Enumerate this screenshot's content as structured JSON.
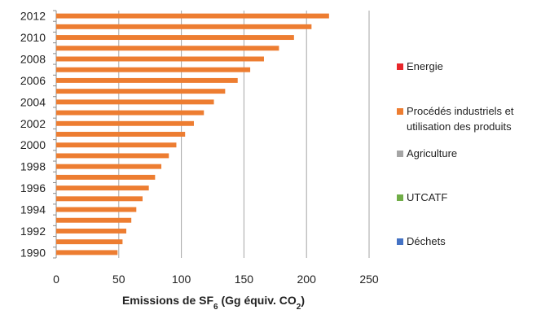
{
  "chart_data": {
    "type": "bar",
    "orientation": "horizontal",
    "stacked": true,
    "title": "",
    "xlabel": "Emissions de SF6 (Gg équiv. CO2)",
    "xlabel_parts": {
      "pre": "Emissions de SF",
      "sub1": "6",
      "mid": " (Gg équiv. CO",
      "sub2": "2",
      "post": ")"
    },
    "ylabel": "",
    "xlim": [
      0,
      250
    ],
    "xticks": [
      "0",
      "50",
      "100",
      "150",
      "200",
      "250"
    ],
    "grid": "vertical",
    "legend_position": "right",
    "categories": [
      "1990",
      "1991",
      "1992",
      "1993",
      "1994",
      "1995",
      "1996",
      "1997",
      "1998",
      "1999",
      "2000",
      "2001",
      "2002",
      "2003",
      "2004",
      "2005",
      "2006",
      "2007",
      "2008",
      "2009",
      "2010",
      "2011",
      "2012"
    ],
    "category_labels": [
      "1990",
      "",
      "1992",
      "",
      "1994",
      "",
      "1996",
      "",
      "1998",
      "",
      "2000",
      "",
      "2002",
      "",
      "2004",
      "",
      "2006",
      "",
      "2008",
      "",
      "2010",
      "",
      "2012"
    ],
    "series": [
      {
        "name": "Energie",
        "color": "#e8262a",
        "values": [
          0,
          0,
          0,
          0,
          0,
          0,
          0,
          0,
          0,
          0,
          0,
          0,
          0,
          0,
          0,
          0,
          0,
          0,
          0,
          0,
          0,
          0,
          0
        ]
      },
      {
        "name": "Procédés industriels et utilisation des produits",
        "legend_lines": [
          "Procédés industriels et",
          "utilisation des produits"
        ],
        "color": "#ed7d31",
        "values": [
          49,
          53,
          56,
          60,
          64,
          69,
          74,
          79,
          84,
          90,
          96,
          103,
          110,
          118,
          126,
          135,
          145,
          155,
          166,
          178,
          190,
          204,
          218
        ]
      },
      {
        "name": "Agriculture",
        "color": "#a5a5a5",
        "values": [
          0,
          0,
          0,
          0,
          0,
          0,
          0,
          0,
          0,
          0,
          0,
          0,
          0,
          0,
          0,
          0,
          0,
          0,
          0,
          0,
          0,
          0,
          0
        ]
      },
      {
        "name": "UTCATF",
        "color": "#70ad47",
        "values": [
          0,
          0,
          0,
          0,
          0,
          0,
          0,
          0,
          0,
          0,
          0,
          0,
          0,
          0,
          0,
          0,
          0,
          0,
          0,
          0,
          0,
          0,
          0
        ]
      },
      {
        "name": "Déchets",
        "color": "#4472c4",
        "values": [
          0,
          0,
          0,
          0,
          0,
          0,
          0,
          0,
          0,
          0,
          0,
          0,
          0,
          0,
          0,
          0,
          0,
          0,
          0,
          0,
          0,
          0,
          0
        ]
      }
    ]
  }
}
